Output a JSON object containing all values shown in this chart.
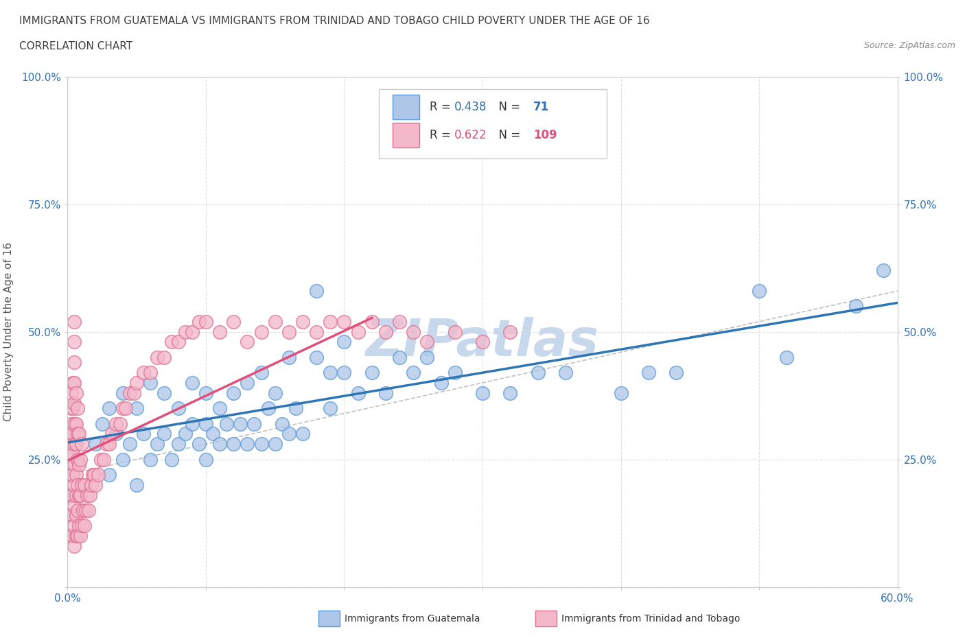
{
  "title": "IMMIGRANTS FROM GUATEMALA VS IMMIGRANTS FROM TRINIDAD AND TOBAGO CHILD POVERTY UNDER THE AGE OF 16",
  "subtitle": "CORRELATION CHART",
  "source": "Source: ZipAtlas.com",
  "ylabel": "Child Poverty Under the Age of 16",
  "xlim": [
    0.0,
    0.6
  ],
  "ylim": [
    0.0,
    1.0
  ],
  "xtick_positions": [
    0.0,
    0.1,
    0.2,
    0.3,
    0.4,
    0.5,
    0.6
  ],
  "xticklabels": [
    "0.0%",
    "",
    "",
    "",
    "",
    "",
    "60.0%"
  ],
  "ytick_positions": [
    0.0,
    0.25,
    0.5,
    0.75,
    1.0
  ],
  "yticklabels": [
    "",
    "25.0%",
    "50.0%",
    "75.0%",
    "100.0%"
  ],
  "guatemala_color": "#aec6e8",
  "guatemala_edge": "#5b9bd5",
  "tt_color": "#f4b8cb",
  "tt_edge": "#e07090",
  "trend_blue": "#2e75b6",
  "trend_pink": "#e0507a",
  "trend_gray": "#c0c0c0",
  "legend_R1": "0.438",
  "legend_N1": "71",
  "legend_R2": "0.622",
  "legend_N2": "109",
  "watermark": "ZIPatlas",
  "watermark_color": "#c8d8ec",
  "background_color": "#ffffff",
  "grid_color": "#e0e0e0",
  "title_color": "#404040",
  "tick_label_color": "#3070b0",
  "ylabel_color": "#555555",
  "guatemala_x": [
    0.02,
    0.025,
    0.03,
    0.03,
    0.035,
    0.04,
    0.04,
    0.045,
    0.05,
    0.05,
    0.055,
    0.06,
    0.06,
    0.065,
    0.07,
    0.07,
    0.075,
    0.08,
    0.08,
    0.085,
    0.09,
    0.09,
    0.095,
    0.1,
    0.1,
    0.1,
    0.105,
    0.11,
    0.11,
    0.115,
    0.12,
    0.12,
    0.125,
    0.13,
    0.13,
    0.135,
    0.14,
    0.14,
    0.145,
    0.15,
    0.15,
    0.155,
    0.16,
    0.16,
    0.165,
    0.17,
    0.18,
    0.18,
    0.19,
    0.19,
    0.2,
    0.2,
    0.21,
    0.22,
    0.23,
    0.24,
    0.25,
    0.26,
    0.27,
    0.28,
    0.3,
    0.32,
    0.34,
    0.36,
    0.4,
    0.42,
    0.44,
    0.5,
    0.52,
    0.57,
    0.59
  ],
  "guatemala_y": [
    0.28,
    0.32,
    0.22,
    0.35,
    0.3,
    0.25,
    0.38,
    0.28,
    0.2,
    0.35,
    0.3,
    0.25,
    0.4,
    0.28,
    0.3,
    0.38,
    0.25,
    0.28,
    0.35,
    0.3,
    0.32,
    0.4,
    0.28,
    0.25,
    0.32,
    0.38,
    0.3,
    0.28,
    0.35,
    0.32,
    0.28,
    0.38,
    0.32,
    0.28,
    0.4,
    0.32,
    0.28,
    0.42,
    0.35,
    0.28,
    0.38,
    0.32,
    0.3,
    0.45,
    0.35,
    0.3,
    0.58,
    0.45,
    0.42,
    0.35,
    0.42,
    0.48,
    0.38,
    0.42,
    0.38,
    0.45,
    0.42,
    0.45,
    0.4,
    0.42,
    0.38,
    0.38,
    0.42,
    0.42,
    0.38,
    0.42,
    0.42,
    0.58,
    0.45,
    0.55,
    0.62
  ],
  "tt_x": [
    0.002,
    0.002,
    0.002,
    0.003,
    0.003,
    0.003,
    0.003,
    0.003,
    0.003,
    0.003,
    0.003,
    0.003,
    0.003,
    0.004,
    0.004,
    0.004,
    0.004,
    0.004,
    0.004,
    0.004,
    0.004,
    0.005,
    0.005,
    0.005,
    0.005,
    0.005,
    0.005,
    0.005,
    0.005,
    0.005,
    0.005,
    0.005,
    0.005,
    0.006,
    0.006,
    0.006,
    0.006,
    0.006,
    0.006,
    0.006,
    0.007,
    0.007,
    0.007,
    0.007,
    0.007,
    0.007,
    0.008,
    0.008,
    0.008,
    0.008,
    0.009,
    0.009,
    0.009,
    0.01,
    0.01,
    0.01,
    0.011,
    0.012,
    0.012,
    0.013,
    0.014,
    0.015,
    0.016,
    0.017,
    0.018,
    0.019,
    0.02,
    0.022,
    0.024,
    0.026,
    0.028,
    0.03,
    0.032,
    0.035,
    0.038,
    0.04,
    0.042,
    0.045,
    0.048,
    0.05,
    0.055,
    0.06,
    0.065,
    0.07,
    0.075,
    0.08,
    0.085,
    0.09,
    0.095,
    0.1,
    0.11,
    0.12,
    0.13,
    0.14,
    0.15,
    0.16,
    0.17,
    0.18,
    0.19,
    0.2,
    0.21,
    0.22,
    0.23,
    0.24,
    0.25,
    0.26,
    0.28,
    0.3,
    0.32
  ],
  "tt_y": [
    0.18,
    0.22,
    0.25,
    0.1,
    0.14,
    0.18,
    0.22,
    0.26,
    0.28,
    0.3,
    0.32,
    0.35,
    0.38,
    0.1,
    0.14,
    0.18,
    0.22,
    0.26,
    0.3,
    0.35,
    0.4,
    0.08,
    0.12,
    0.16,
    0.2,
    0.24,
    0.28,
    0.32,
    0.36,
    0.4,
    0.44,
    0.48,
    0.52,
    0.1,
    0.14,
    0.18,
    0.22,
    0.28,
    0.32,
    0.38,
    0.1,
    0.15,
    0.2,
    0.25,
    0.3,
    0.35,
    0.12,
    0.18,
    0.24,
    0.3,
    0.1,
    0.18,
    0.25,
    0.12,
    0.2,
    0.28,
    0.15,
    0.12,
    0.2,
    0.15,
    0.18,
    0.15,
    0.18,
    0.2,
    0.22,
    0.22,
    0.2,
    0.22,
    0.25,
    0.25,
    0.28,
    0.28,
    0.3,
    0.32,
    0.32,
    0.35,
    0.35,
    0.38,
    0.38,
    0.4,
    0.42,
    0.42,
    0.45,
    0.45,
    0.48,
    0.48,
    0.5,
    0.5,
    0.52,
    0.52,
    0.5,
    0.52,
    0.48,
    0.5,
    0.52,
    0.5,
    0.52,
    0.5,
    0.52,
    0.52,
    0.5,
    0.52,
    0.5,
    0.52,
    0.5,
    0.48,
    0.5,
    0.48,
    0.5
  ]
}
